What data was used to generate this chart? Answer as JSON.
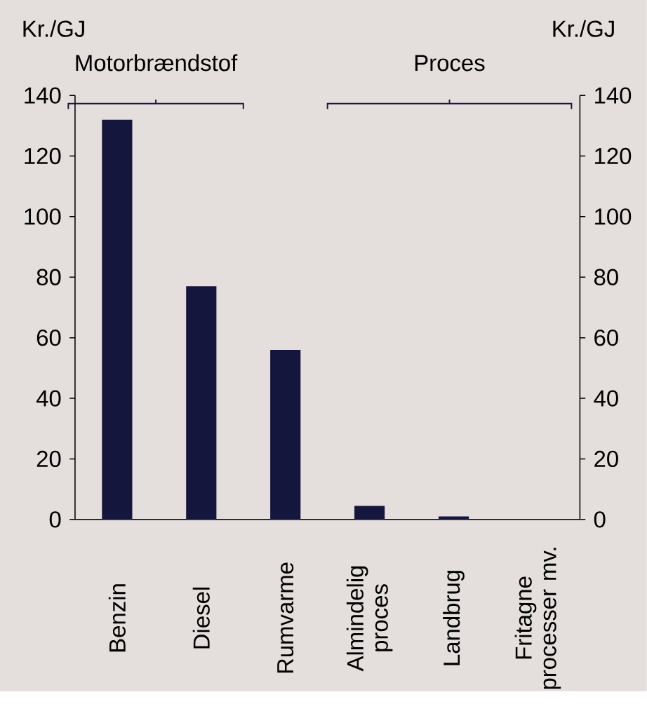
{
  "chart_data": {
    "type": "bar",
    "ylabel": "Kr./GJ",
    "y2label": "Kr./GJ",
    "categories": [
      "Benzin",
      "Diesel",
      "Rumvarme",
      "Almindelig proces",
      "Landbrug",
      "Fritagne processer mv."
    ],
    "values": [
      132,
      77,
      56,
      4.5,
      1,
      0
    ],
    "color": "#15163d",
    "ylim": [
      0,
      140
    ],
    "yticks": [
      0,
      20,
      40,
      60,
      80,
      100,
      120,
      140
    ],
    "y2lim": [
      0,
      140
    ],
    "y2ticks": [
      0,
      20,
      40,
      60,
      80,
      100,
      120,
      140
    ],
    "annotations": [
      "Motorbrændstof",
      "Proces"
    ]
  }
}
